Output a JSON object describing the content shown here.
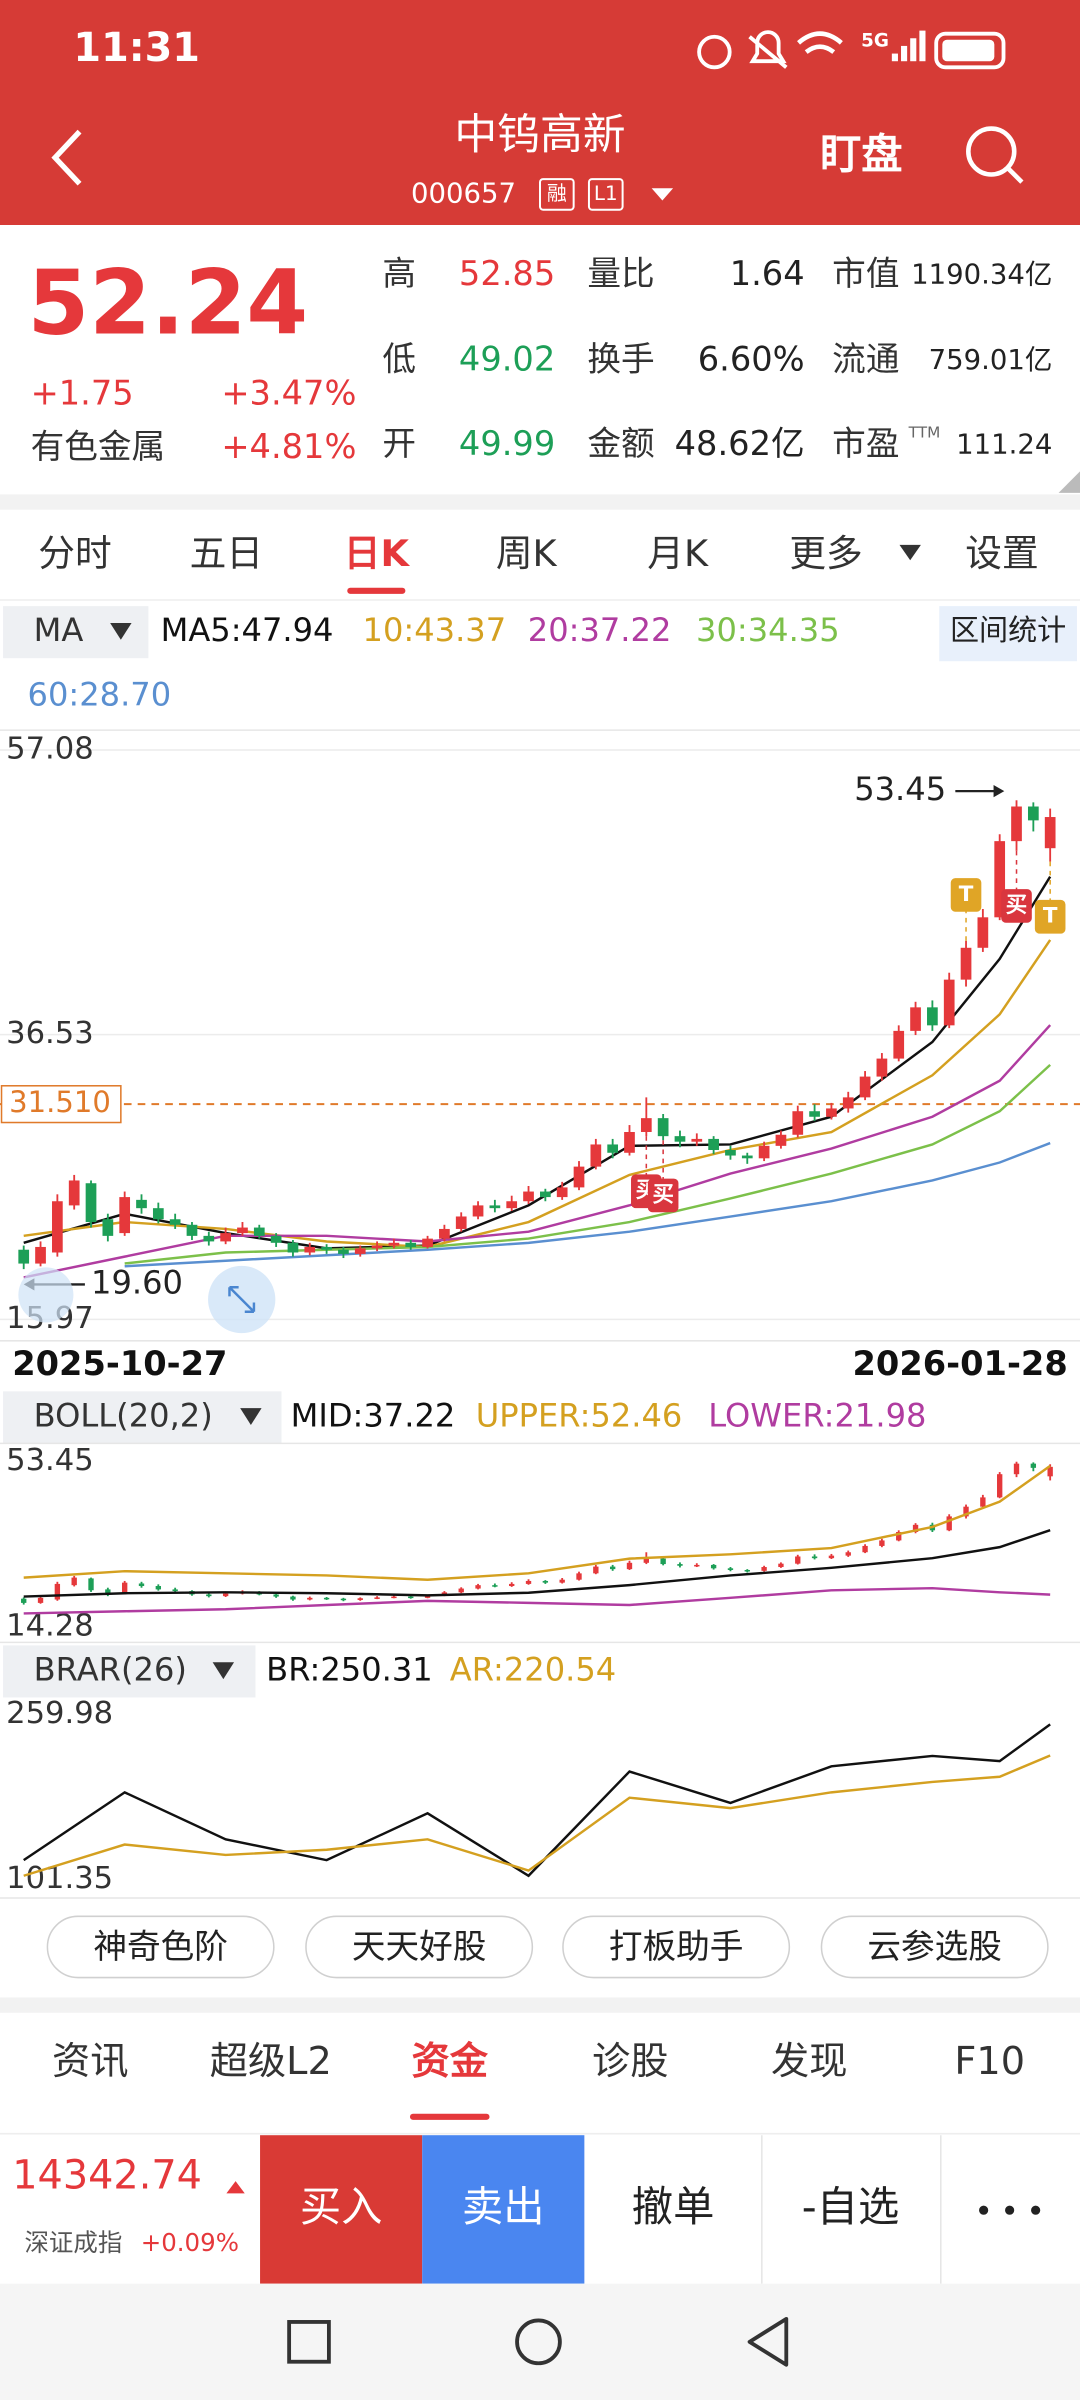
{
  "status_bar": {
    "time": "11:31",
    "network": "5G"
  },
  "header": {
    "title": "中钨高新",
    "code": "000657",
    "badges": [
      "融",
      "L1"
    ],
    "watch": "盯盘"
  },
  "quote": {
    "price": "52.24",
    "change": "+1.75",
    "change_pct": "+3.47%",
    "sector": "有色金属",
    "sector_pct": "+4.81%",
    "stats": [
      [
        {
          "label": "高",
          "value": "52.85",
          "color": "#e5383b"
        },
        {
          "label": "量比",
          "value": "1.64"
        },
        {
          "label": "市值",
          "value": "1190.34亿"
        }
      ],
      [
        {
          "label": "低",
          "value": "49.02",
          "color": "#1d9f57"
        },
        {
          "label": "换手",
          "value": "6.60%"
        },
        {
          "label": "流通",
          "value": "759.01亿"
        }
      ],
      [
        {
          "label": "开",
          "value": "49.99",
          "color": "#1d9f57"
        },
        {
          "label": "金额",
          "value": "48.62亿"
        },
        {
          "label": "市盈",
          "label_sup": "TTM",
          "value": "111.24"
        }
      ]
    ]
  },
  "period_tabs": {
    "items": [
      "分时",
      "五日",
      "日K",
      "周K",
      "月K",
      "更多",
      "设置"
    ],
    "active": 2
  },
  "chart_data": [
    {
      "type": "candlestick",
      "indicator": "MA",
      "legend": [
        {
          "name": "MA5:47.94",
          "color": "#111111"
        },
        {
          "name": "10:43.37",
          "color": "#d4a020"
        },
        {
          "name": "20:37.22",
          "color": "#b03ca0"
        },
        {
          "name": "30:34.35",
          "color": "#7cc04a"
        },
        {
          "name": "60:28.70",
          "color": "#5a8fd0"
        }
      ],
      "range_button": "区间统计",
      "x_start": "2025-10-27",
      "x_end": "2026-01-28",
      "up_color": "#e5383b",
      "down_color": "#1d9f57",
      "candles": [
        [
          21.0,
          21.3,
          19.6,
          20.0
        ],
        [
          20.0,
          21.6,
          19.8,
          21.2
        ],
        [
          20.8,
          25.0,
          20.5,
          24.5
        ],
        [
          24.2,
          26.4,
          23.9,
          26.0
        ],
        [
          25.8,
          26.0,
          22.6,
          23.0
        ],
        [
          23.2,
          23.6,
          21.6,
          22.0
        ],
        [
          22.2,
          25.2,
          22.0,
          24.8
        ],
        [
          24.6,
          25.0,
          23.6,
          24.0
        ],
        [
          24.0,
          24.4,
          22.9,
          23.2
        ],
        [
          23.2,
          23.6,
          22.5,
          22.8
        ],
        [
          22.8,
          23.0,
          21.7,
          22.0
        ],
        [
          22.0,
          22.3,
          21.3,
          21.6
        ],
        [
          21.6,
          22.6,
          21.4,
          22.2
        ],
        [
          22.2,
          23.0,
          22.0,
          22.6
        ],
        [
          22.6,
          22.8,
          21.8,
          22.0
        ],
        [
          22.0,
          22.2,
          21.2,
          21.5
        ],
        [
          21.5,
          21.7,
          20.5,
          20.8
        ],
        [
          20.8,
          21.5,
          20.6,
          21.2
        ],
        [
          21.2,
          21.4,
          20.7,
          21.0
        ],
        [
          21.0,
          21.2,
          20.4,
          20.7
        ],
        [
          20.7,
          21.3,
          20.5,
          21.1
        ],
        [
          21.1,
          21.6,
          20.9,
          21.3
        ],
        [
          21.3,
          21.8,
          21.1,
          21.5
        ],
        [
          21.5,
          21.7,
          21.0,
          21.2
        ],
        [
          21.2,
          22.0,
          21.1,
          21.8
        ],
        [
          21.8,
          22.8,
          21.6,
          22.5
        ],
        [
          22.5,
          23.7,
          22.3,
          23.4
        ],
        [
          23.4,
          24.5,
          23.2,
          24.2
        ],
        [
          24.2,
          24.6,
          23.7,
          24.0
        ],
        [
          24.0,
          24.9,
          23.8,
          24.5
        ],
        [
          24.5,
          25.6,
          24.3,
          25.2
        ],
        [
          25.2,
          25.4,
          24.5,
          24.8
        ],
        [
          24.8,
          25.9,
          24.6,
          25.5
        ],
        [
          25.5,
          27.4,
          25.3,
          27.0
        ],
        [
          27.0,
          29.0,
          26.8,
          28.6
        ],
        [
          28.6,
          29.0,
          27.6,
          28.0
        ],
        [
          28.0,
          30.0,
          27.8,
          29.5
        ],
        [
          29.5,
          32.0,
          29.2,
          30.5
        ],
        [
          30.5,
          30.8,
          28.9,
          29.2
        ],
        [
          29.2,
          29.6,
          28.4,
          28.8
        ],
        [
          28.8,
          29.4,
          28.5,
          29.0
        ],
        [
          29.0,
          29.2,
          27.9,
          28.2
        ],
        [
          28.2,
          28.5,
          27.5,
          27.8
        ],
        [
          27.8,
          28.0,
          27.2,
          27.6
        ],
        [
          27.6,
          28.8,
          27.4,
          28.5
        ],
        [
          28.5,
          29.6,
          28.3,
          29.3
        ],
        [
          29.3,
          31.4,
          29.1,
          31.0
        ],
        [
          31.0,
          31.5,
          30.3,
          30.6
        ],
        [
          30.6,
          31.6,
          30.4,
          31.2
        ],
        [
          31.2,
          32.4,
          30.9,
          32.0
        ],
        [
          32.0,
          33.9,
          31.8,
          33.5
        ],
        [
          33.5,
          35.2,
          33.2,
          34.8
        ],
        [
          34.8,
          37.2,
          34.6,
          36.8
        ],
        [
          36.8,
          38.9,
          36.5,
          38.5
        ],
        [
          38.5,
          39.0,
          36.8,
          37.2
        ],
        [
          37.2,
          41.0,
          37.0,
          40.5
        ],
        [
          40.5,
          43.3,
          40.0,
          42.8
        ],
        [
          42.8,
          45.6,
          42.5,
          45.0
        ],
        [
          45.0,
          51.0,
          44.8,
          50.5
        ],
        [
          50.5,
          53.45,
          49.8,
          53.0
        ],
        [
          53.0,
          53.3,
          51.2,
          52.0
        ],
        [
          49.99,
          52.85,
          49.02,
          52.24
        ]
      ],
      "ylim": [
        15.97,
        57.08
      ],
      "yticks": [
        57.08,
        36.53,
        15.97
      ],
      "grid": true,
      "ref_line": {
        "value": 31.51,
        "label": "31.510",
        "color": "#e07a2a"
      },
      "max_label": "53.45",
      "min_label": "19.60",
      "signals": [
        {
          "label": "T",
          "candle": 56,
          "side": "above",
          "color": "#e0a526"
        },
        {
          "label": "T",
          "candle": 61,
          "side": "below",
          "color": "#e0a526"
        },
        {
          "label": "买",
          "candle": 37,
          "side": "below",
          "color": "#d9363e"
        },
        {
          "label": "买",
          "candle": 38,
          "side": "below",
          "color": "#d9363e"
        },
        {
          "label": "买",
          "candle": 59,
          "side": "below",
          "color": "#d9363e"
        }
      ],
      "line_x": [
        0,
        6,
        12,
        18,
        24,
        30,
        36,
        42,
        48,
        54,
        58,
        61
      ],
      "series": [
        {
          "color": "#111111",
          "values": [
            21.5,
            23.6,
            22.2,
            21.1,
            21.3,
            24.2,
            28.5,
            28.6,
            30.6,
            36.0,
            42.0,
            47.94
          ]
        },
        {
          "color": "#d4a020",
          "values": [
            22.0,
            23.0,
            22.5,
            21.6,
            21.2,
            23.0,
            26.4,
            28.2,
            29.5,
            33.6,
            38.0,
            43.37
          ]
        },
        {
          "color": "#b03ca0",
          "values": [
            19.0,
            20.5,
            22.0,
            22.0,
            21.6,
            22.3,
            24.2,
            26.5,
            28.3,
            30.6,
            33.2,
            37.22
          ]
        },
        {
          "color": "#7cc04a",
          "values": [
            null,
            20.0,
            20.8,
            21.0,
            21.2,
            21.8,
            23.0,
            24.7,
            26.5,
            28.6,
            31.0,
            34.35
          ]
        },
        {
          "color": "#5a8fd0",
          "values": [
            null,
            19.8,
            20.2,
            20.6,
            21.0,
            21.5,
            22.3,
            23.4,
            24.5,
            26.0,
            27.3,
            28.7
          ]
        }
      ]
    },
    {
      "type": "line",
      "indicator": "BOLL(20,2)",
      "overlay_candles": true,
      "legend": [
        {
          "name": "MID:37.22",
          "color": "#111111"
        },
        {
          "name": "UPPER:52.46",
          "color": "#d4a020"
        },
        {
          "name": "LOWER:21.98",
          "color": "#b03ca0"
        }
      ],
      "ylim": [
        14.28,
        53.45
      ],
      "yticks": [
        53.45,
        14.28
      ],
      "series": [
        {
          "color": "#111111",
          "values": [
            21.5,
            22.3,
            22.5,
            22.3,
            21.8,
            22.4,
            24.2,
            26.5,
            28.3,
            30.6,
            33.2,
            37.22
          ]
        },
        {
          "color": "#d4a020",
          "values": [
            26.0,
            27.5,
            27.0,
            26.5,
            25.5,
            27.0,
            30.5,
            31.5,
            33.0,
            38.0,
            44.0,
            52.46
          ]
        },
        {
          "color": "#b03ca0",
          "values": [
            17.5,
            18.0,
            18.5,
            19.5,
            20.5,
            20.0,
            19.5,
            21.2,
            23.0,
            23.5,
            22.5,
            21.98
          ]
        }
      ]
    },
    {
      "type": "line",
      "indicator": "BRAR(26)",
      "legend": [
        {
          "name": "BR:250.31",
          "color": "#111111"
        },
        {
          "name": "AR:220.54",
          "color": "#d4a020"
        }
      ],
      "ylim": [
        101.35,
        259.98
      ],
      "yticks": [
        259.98,
        101.35
      ],
      "series": [
        {
          "color": "#111111",
          "values": [
            120,
            185,
            140,
            120,
            165,
            105,
            205,
            175,
            210,
            220,
            215,
            250.31
          ]
        },
        {
          "color": "#d4a020",
          "values": [
            105,
            135,
            125,
            130,
            140,
            110,
            180,
            170,
            185,
            195,
            200,
            220.54
          ]
        }
      ]
    }
  ],
  "tools": [
    "神奇色阶",
    "天天好股",
    "打板助手",
    "云参选股"
  ],
  "bottom_tabs": {
    "items": [
      "资讯",
      "超级L2",
      "资金",
      "诊股",
      "发现",
      "F10"
    ],
    "active": 2
  },
  "trade_bar": {
    "index": {
      "value": "14342.74",
      "name": "深证成指",
      "pct": "+0.09%"
    },
    "buttons": [
      "买入",
      "卖出",
      "撤单",
      "-自选"
    ]
  }
}
